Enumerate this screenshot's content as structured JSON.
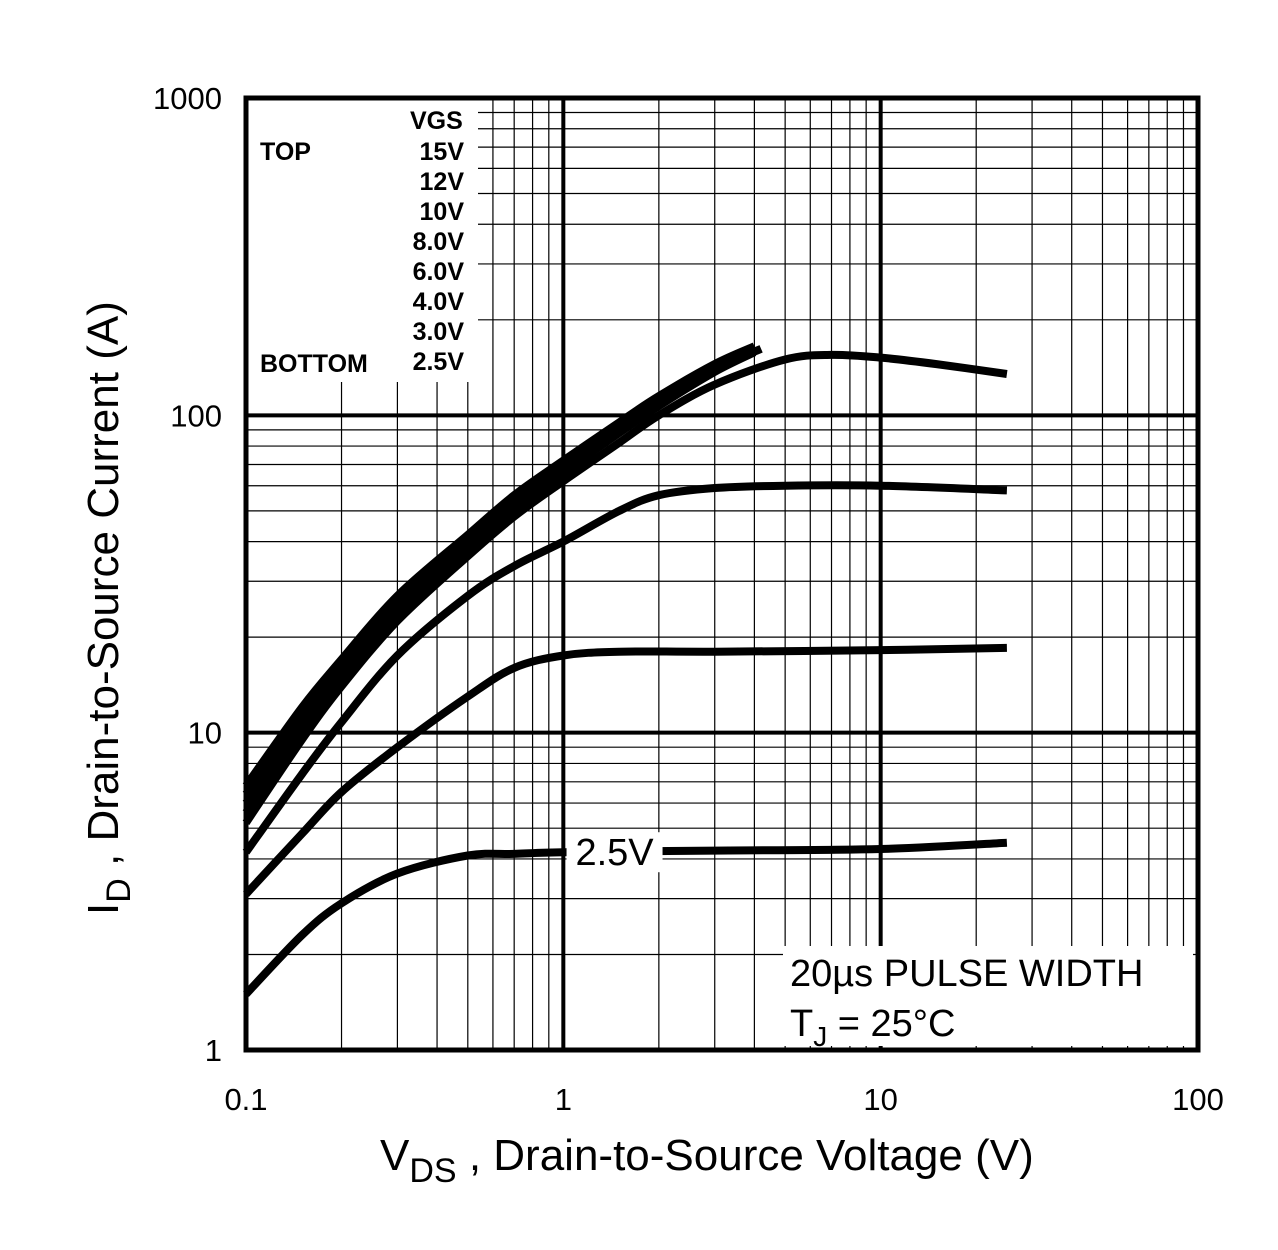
{
  "chart_data": {
    "type": "line",
    "xscale": "log",
    "yscale": "log",
    "xlim": [
      0.1,
      100
    ],
    "ylim": [
      1,
      1000
    ],
    "xticks": [
      0.1,
      1,
      10,
      100
    ],
    "yticks": [
      1,
      10,
      100,
      1000
    ],
    "xtick_labels": [
      "0.1",
      "1",
      "10",
      "100"
    ],
    "ytick_labels": [
      "1",
      "10",
      "100",
      "1000"
    ],
    "grid": true,
    "xlabel": {
      "main": "V",
      "sub": "DS",
      "rest": " , Drain-to-Source Voltage (V)"
    },
    "ylabel": {
      "main": "I",
      "sub": "D",
      "rest": " , Drain-to-Source Current (A)"
    },
    "legend": {
      "placement": "top-left",
      "header": "VGS",
      "top_label": "TOP",
      "bottom_label": "BOTTOM",
      "entries": [
        "15V",
        "12V",
        "10V",
        "8.0V",
        "6.0V",
        "4.0V",
        "3.0V",
        "2.5V"
      ]
    },
    "annotations": [
      {
        "text": "2.5V",
        "x": 1.45,
        "y": 4.2
      }
    ],
    "conditions": {
      "line1": "20µs PULSE WIDTH",
      "line2_main": "T",
      "line2_sub": "J",
      "line2_rest": " = 25°C"
    },
    "series": [
      {
        "points": [
          [
            0.1,
            6.8
          ],
          [
            0.15,
            12
          ],
          [
            0.2,
            17
          ],
          [
            0.3,
            27
          ],
          [
            0.5,
            42
          ],
          [
            0.7,
            56
          ],
          [
            1,
            72
          ],
          [
            1.5,
            95
          ],
          [
            2,
            115
          ],
          [
            3,
            145
          ],
          [
            4,
            165
          ]
        ]
      },
      {
        "points": [
          [
            0.1,
            6.4
          ],
          [
            0.15,
            11.5
          ],
          [
            0.2,
            16.5
          ],
          [
            0.3,
            26
          ],
          [
            0.5,
            41
          ],
          [
            0.7,
            55
          ],
          [
            1,
            70
          ],
          [
            1.5,
            93
          ],
          [
            2,
            113
          ],
          [
            3,
            142
          ],
          [
            4,
            163
          ]
        ]
      },
      {
        "points": [
          [
            0.1,
            6.0
          ],
          [
            0.15,
            11
          ],
          [
            0.2,
            16
          ],
          [
            0.3,
            25
          ],
          [
            0.5,
            40
          ],
          [
            0.7,
            53
          ],
          [
            1,
            68
          ],
          [
            1.5,
            91
          ],
          [
            2,
            110
          ],
          [
            3,
            140
          ],
          [
            4.2,
            162
          ]
        ]
      },
      {
        "points": [
          [
            0.1,
            5.6
          ],
          [
            0.15,
            10.3
          ],
          [
            0.2,
            15
          ],
          [
            0.3,
            24
          ],
          [
            0.5,
            38
          ],
          [
            0.7,
            51
          ],
          [
            1,
            66
          ],
          [
            1.5,
            88
          ],
          [
            2,
            107
          ],
          [
            3,
            137
          ],
          [
            4,
            158
          ]
        ]
      },
      {
        "points": [
          [
            0.1,
            5.2
          ],
          [
            0.15,
            9.5
          ],
          [
            0.2,
            14
          ],
          [
            0.3,
            22.5
          ],
          [
            0.5,
            36
          ],
          [
            0.7,
            48
          ],
          [
            1,
            62
          ],
          [
            1.5,
            82
          ],
          [
            2,
            100
          ],
          [
            3,
            125
          ],
          [
            5,
            150
          ],
          [
            7,
            155
          ],
          [
            10,
            152
          ],
          [
            15,
            145
          ],
          [
            25,
            135
          ]
        ]
      },
      {
        "points": [
          [
            0.1,
            4.2
          ],
          [
            0.15,
            7.4
          ],
          [
            0.2,
            10.8
          ],
          [
            0.3,
            17.5
          ],
          [
            0.5,
            27
          ],
          [
            0.7,
            33.5
          ],
          [
            1,
            40
          ],
          [
            1.5,
            50
          ],
          [
            2,
            56
          ],
          [
            3,
            59
          ],
          [
            5,
            60
          ],
          [
            10,
            60
          ],
          [
            25,
            58
          ]
        ]
      },
      {
        "points": [
          [
            0.1,
            3.1
          ],
          [
            0.15,
            4.8
          ],
          [
            0.2,
            6.5
          ],
          [
            0.3,
            9.0
          ],
          [
            0.5,
            13
          ],
          [
            0.7,
            16
          ],
          [
            1,
            17.5
          ],
          [
            1.5,
            18
          ],
          [
            3,
            18
          ],
          [
            10,
            18.2
          ],
          [
            25,
            18.5
          ]
        ]
      },
      {
        "points": [
          [
            0.1,
            1.5
          ],
          [
            0.15,
            2.3
          ],
          [
            0.2,
            2.9
          ],
          [
            0.3,
            3.6
          ],
          [
            0.5,
            4.1
          ],
          [
            0.7,
            4.15
          ],
          [
            1,
            4.2
          ],
          [
            3,
            4.25
          ],
          [
            10,
            4.3
          ],
          [
            25,
            4.5
          ]
        ]
      }
    ]
  }
}
